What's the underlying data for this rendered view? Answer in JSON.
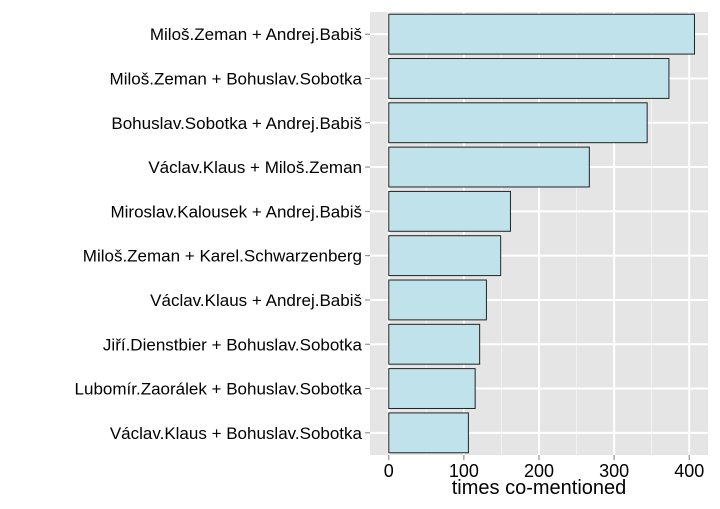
{
  "chart_data": {
    "type": "bar",
    "orientation": "horizontal",
    "xlabel": "times co-mentioned",
    "ylabel": "",
    "xlim": [
      -25,
      425
    ],
    "xticks": [
      0,
      100,
      200,
      300,
      400
    ],
    "grid": true,
    "bar_fill": "#c0e2ea",
    "bar_stroke": "#222222",
    "panel_background": "#e5e5e5",
    "categories": [
      "Miloš.Zeman + Andrej.Babiš",
      "Miloš.Zeman + Bohuslav.Sobotka",
      "Bohuslav.Sobotka + Andrej.Babiš",
      "Václav.Klaus + Miloš.Zeman",
      "Miroslav.Kalousek + Andrej.Babiš",
      "Miloš.Zeman + Karel.Schwarzenberg",
      "Václav.Klaus + Andrej.Babiš",
      "Jiří.Dienstbier + Bohuslav.Sobotka",
      "Lubomír.Zaorálek + Bohuslav.Sobotka",
      "Václav.Klaus + Bohuslav.Sobotka"
    ],
    "values": [
      407,
      373,
      344,
      267,
      162,
      149,
      130,
      121,
      115,
      106
    ]
  }
}
